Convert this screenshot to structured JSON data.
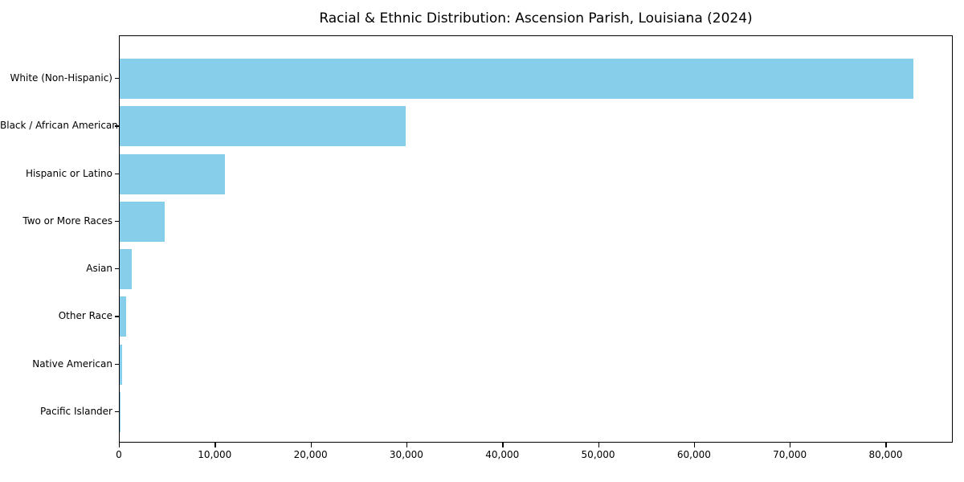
{
  "figure": {
    "background": "#ffffff",
    "spine_color": "#000000"
  },
  "chart_data": {
    "type": "bar",
    "orientation": "horizontal",
    "title": "Racial & Ethnic Distribution: Ascension Parish, Louisiana (2024)",
    "categories": [
      "White (Non-Hispanic)",
      "Black / African American",
      "Hispanic or Latino",
      "Two or More Races",
      "Asian",
      "Other Race",
      "Native American",
      "Pacific Islander"
    ],
    "values": [
      83000,
      29900,
      11000,
      4700,
      1300,
      650,
      250,
      50
    ],
    "bar_color": "#87CEEB",
    "xlabel": "",
    "ylabel": "",
    "xlim": [
      0,
      87000
    ],
    "xticks": [
      0,
      10000,
      20000,
      30000,
      40000,
      50000,
      60000,
      70000,
      80000
    ],
    "xtick_labels": [
      "0",
      "10,000",
      "20,000",
      "30,000",
      "40,000",
      "50,000",
      "60,000",
      "70,000",
      "80,000"
    ],
    "grid": false,
    "legend_position": "none"
  }
}
